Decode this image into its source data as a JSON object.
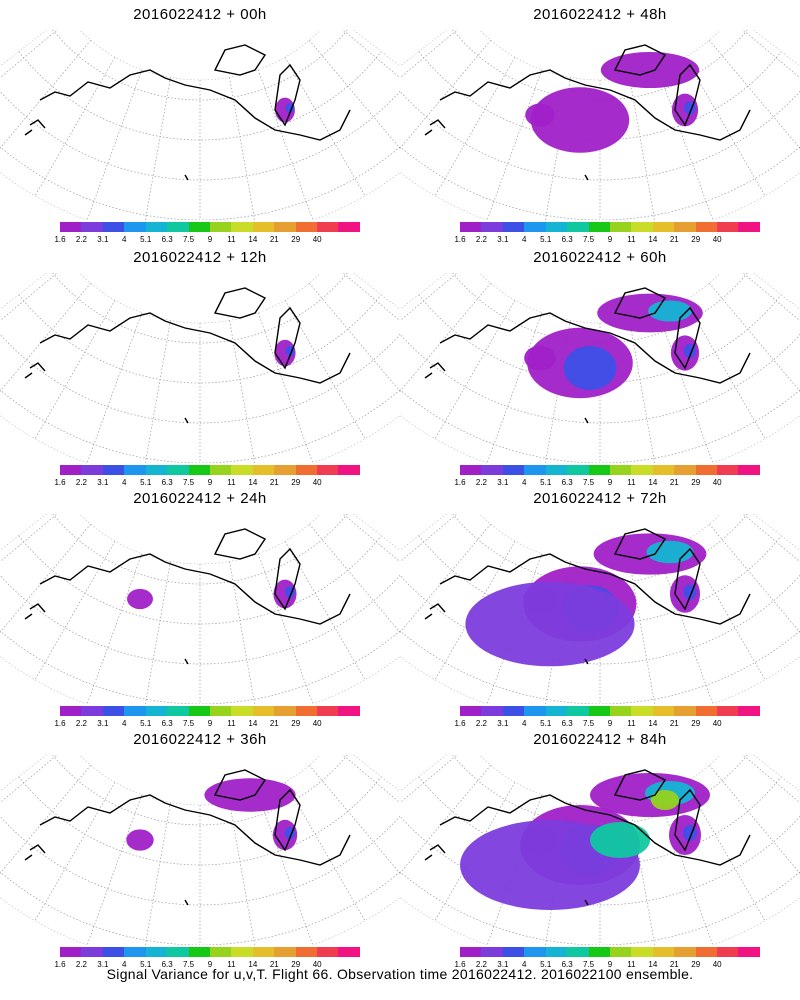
{
  "colorbar": {
    "colors": [
      "#a020c8",
      "#7c3cdc",
      "#3c50e6",
      "#1e96f0",
      "#14b4d2",
      "#10c8a0",
      "#18c818",
      "#96d21e",
      "#c8dc28",
      "#e6be2a",
      "#e6a032",
      "#f06e32",
      "#f03c50",
      "#f01482"
    ],
    "labels": [
      "1.6",
      "2.2",
      "3.1",
      "4",
      "5.1",
      "6.3",
      "7.5",
      "9",
      "11",
      "14",
      "21",
      "29",
      "40"
    ]
  },
  "panels": [
    {
      "title": "2016022412 + 00h",
      "spread": 0.05
    },
    {
      "title": "2016022412 + 48h",
      "spread": 0.55
    },
    {
      "title": "2016022412 + 12h",
      "spread": 0.15
    },
    {
      "title": "2016022412 + 60h",
      "spread": 0.7
    },
    {
      "title": "2016022412 + 24h",
      "spread": 0.3
    },
    {
      "title": "2016022412 + 72h",
      "spread": 0.85
    },
    {
      "title": "2016022412 + 36h",
      "spread": 0.4
    },
    {
      "title": "2016022412 + 84h",
      "spread": 1.0
    }
  ],
  "footer": "Signal Variance for u,v,T. Flight 66. Observation time 2016022412. 2016022100 ensemble."
}
